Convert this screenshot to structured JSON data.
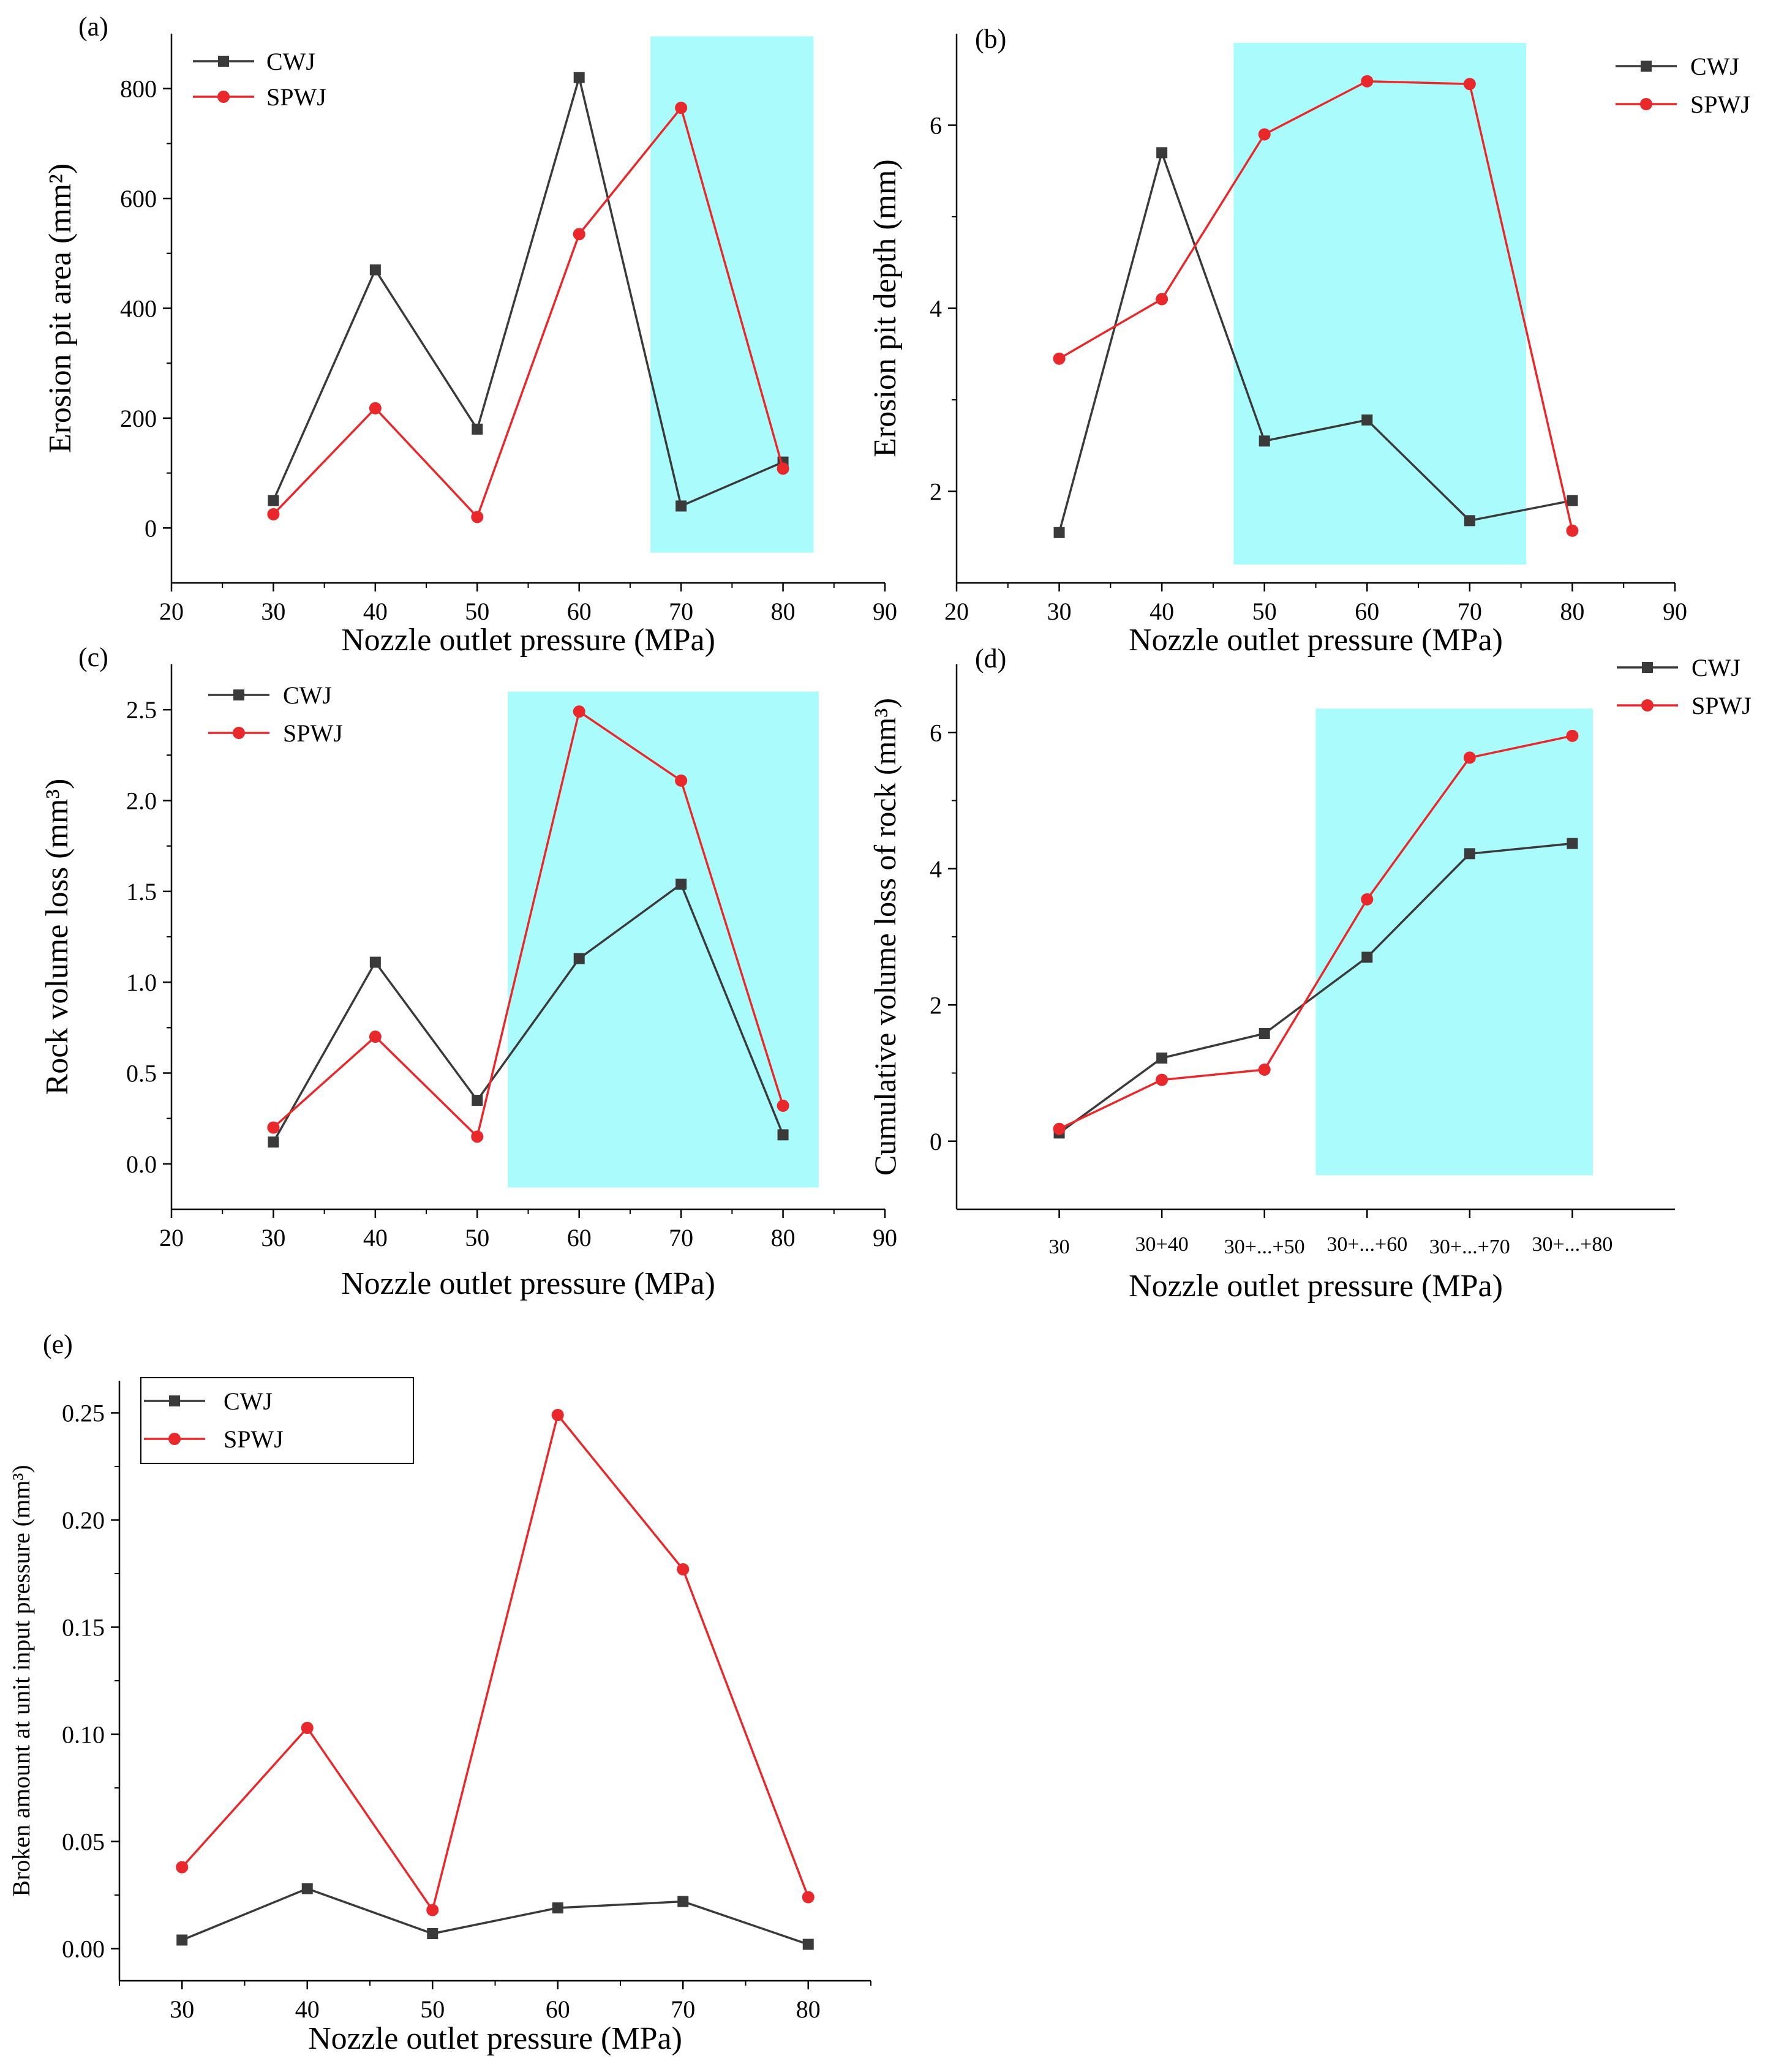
{
  "colors": {
    "cwj": "#3a3a3a",
    "spwj": "#e8282a",
    "highlight": "#aafcfc",
    "axis": "#000000"
  },
  "chart_data": [
    {
      "panel": "(a)",
      "type": "line",
      "x": [
        30,
        40,
        50,
        60,
        70,
        80
      ],
      "series": [
        {
          "name": "CWJ",
          "values": [
            50,
            470,
            180,
            820,
            40,
            120
          ],
          "marker": "square"
        },
        {
          "name": "SPWJ",
          "values": [
            25,
            218,
            20,
            535,
            765,
            108
          ],
          "marker": "circle"
        }
      ],
      "xlabel": "Nozzle outlet pressure (MPa)",
      "ylabel": "Erosion pit area (mm²)",
      "xlim": [
        20,
        90
      ],
      "ylim": [
        -100,
        900
      ],
      "xticks": [
        "20",
        "30",
        "40",
        "50",
        "60",
        "70",
        "80",
        "90"
      ],
      "yticks": [
        "0",
        "200",
        "400",
        "600",
        "800"
      ],
      "highlight_x": [
        67,
        83
      ],
      "highlight_y": [
        -45,
        895
      ],
      "legend": "top-left"
    },
    {
      "panel": "(b)",
      "type": "line",
      "x": [
        30,
        40,
        50,
        60,
        70,
        80
      ],
      "series": [
        {
          "name": "CWJ",
          "values": [
            1.55,
            5.7,
            2.55,
            2.78,
            1.68,
            1.9
          ],
          "marker": "square"
        },
        {
          "name": "SPWJ",
          "values": [
            3.45,
            4.1,
            5.9,
            6.48,
            6.45,
            1.57
          ],
          "marker": "circle"
        }
      ],
      "xlabel": "Nozzle outlet pressure (MPa)",
      "ylabel": "Erosion pit depth (mm)",
      "xlim": [
        20,
        90
      ],
      "ylim": [
        1,
        7
      ],
      "xticks": [
        "20",
        "30",
        "40",
        "50",
        "60",
        "70",
        "80",
        "90"
      ],
      "yticks": [
        "2",
        "4",
        "6"
      ],
      "highlight_x": [
        47,
        75.5
      ],
      "highlight_y": [
        1.2,
        6.9
      ],
      "legend": "top-right, outside"
    },
    {
      "panel": "(c)",
      "type": "line",
      "x": [
        30,
        40,
        50,
        60,
        70,
        80
      ],
      "series": [
        {
          "name": "CWJ",
          "values": [
            0.12,
            1.11,
            0.35,
            1.13,
            1.54,
            0.16
          ],
          "marker": "square"
        },
        {
          "name": "SPWJ",
          "values": [
            0.2,
            0.7,
            0.15,
            2.49,
            2.11,
            0.32
          ],
          "marker": "circle"
        }
      ],
      "xlabel": "Nozzle outlet pressure (MPa)",
      "ylabel": "Rock volume loss (mm³)",
      "xlim": [
        20,
        90
      ],
      "ylim": [
        -0.25,
        2.75
      ],
      "xticks": [
        "20",
        "30",
        "40",
        "50",
        "60",
        "70",
        "80",
        "90"
      ],
      "yticks": [
        "0.0",
        "0.5",
        "1.0",
        "1.5",
        "2.0",
        "2.5"
      ],
      "highlight_x": [
        53,
        83.5
      ],
      "highlight_y": [
        -0.13,
        2.6
      ],
      "legend": "top-left"
    },
    {
      "panel": "(d)",
      "type": "line",
      "categories": [
        "30",
        "30+40",
        "30+...+50",
        "30+...+60",
        "30+...+70",
        "30+...+80"
      ],
      "series": [
        {
          "name": "CWJ",
          "values": [
            0.12,
            1.22,
            1.58,
            2.7,
            4.22,
            4.37
          ],
          "marker": "square"
        },
        {
          "name": "SPWJ",
          "values": [
            0.18,
            0.9,
            1.05,
            3.55,
            5.63,
            5.95
          ],
          "marker": "circle"
        }
      ],
      "xlabel": "Nozzle outlet pressure (MPa)",
      "ylabel": "Cumulative volume loss of rock (mm³)",
      "ylim": [
        -1,
        7
      ],
      "yticks": [
        "0",
        "2",
        "4",
        "6"
      ],
      "highlight_categories": [
        "30+...+60",
        "30+...+80"
      ],
      "highlight_y": [
        -0.5,
        6.35
      ],
      "legend": "top-right, outside"
    },
    {
      "panel": "(e)",
      "type": "line",
      "x": [
        30,
        40,
        50,
        60,
        70,
        80
      ],
      "series": [
        {
          "name": "CWJ",
          "values": [
            0.004,
            0.028,
            0.007,
            0.019,
            0.022,
            0.002
          ],
          "marker": "square"
        },
        {
          "name": "SPWJ",
          "values": [
            0.038,
            0.103,
            0.018,
            0.249,
            0.177,
            0.024
          ],
          "marker": "circle"
        }
      ],
      "xlabel": "Nozzle outlet pressure (MPa)",
      "ylabel": "Broken amount at unit input pressure (mm³)",
      "xlim": [
        25,
        85
      ],
      "ylim": [
        -0.015,
        0.265
      ],
      "xticks": [
        "30",
        "40",
        "50",
        "60",
        "70",
        "80"
      ],
      "yticks": [
        "0.00",
        "0.05",
        "0.10",
        "0.15",
        "0.20",
        "0.25"
      ],
      "legend": "top-left, boxed"
    }
  ]
}
